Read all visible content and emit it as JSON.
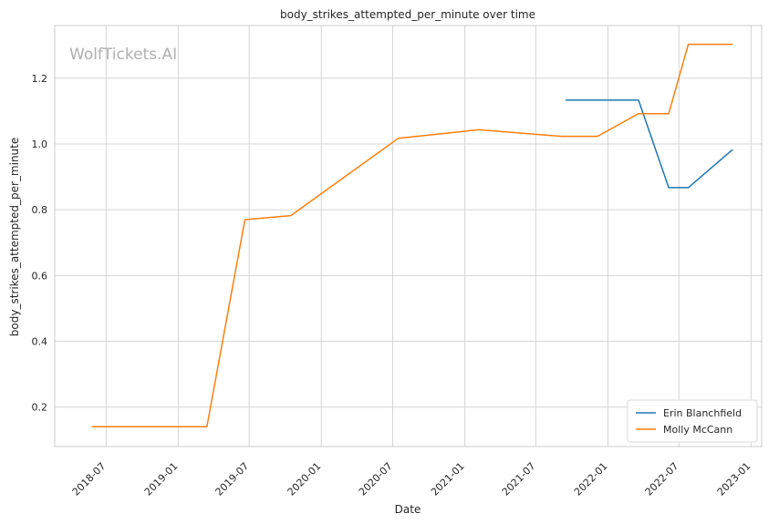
{
  "chart_data": {
    "type": "line",
    "title": "body_strikes_attempted_per_minute over time",
    "xlabel": "Date",
    "ylabel": "body_strikes_attempted_per_minute",
    "watermark": "WolfTickets.AI",
    "xlim": [
      "2018-02-20",
      "2023-01-28"
    ],
    "ylim": [
      0.08,
      1.36
    ],
    "x_ticks": [
      "2018-07",
      "2019-01",
      "2019-07",
      "2020-01",
      "2020-07",
      "2021-01",
      "2021-07",
      "2022-01",
      "2022-07",
      "2023-01"
    ],
    "y_ticks": [
      0.2,
      0.4,
      0.6,
      0.8,
      1.0,
      1.2
    ],
    "y_tick_labels": [
      "0.2",
      "0.4",
      "0.6",
      "0.8",
      "1.0",
      "1.2"
    ],
    "grid": true,
    "legend_position": "lower-right",
    "series": [
      {
        "name": "Erin Blanchfield",
        "color": "#1f77b4",
        "x": [
          "2021-09-15",
          "2022-03-20",
          "2022-06-05",
          "2022-07-25",
          "2022-11-15"
        ],
        "y": [
          1.133,
          1.133,
          0.867,
          0.867,
          0.983
        ]
      },
      {
        "name": "Molly McCann",
        "color": "#ff7f0e",
        "x": [
          "2018-05-25",
          "2019-03-15",
          "2019-06-20",
          "2019-10-15",
          "2020-07-15",
          "2021-02-05",
          "2021-09-05",
          "2021-12-05",
          "2022-03-20",
          "2022-06-05",
          "2022-07-25",
          "2022-11-15"
        ],
        "y": [
          0.14,
          0.14,
          0.77,
          0.782,
          1.017,
          1.043,
          1.023,
          1.023,
          1.092,
          1.092,
          1.303,
          1.303
        ]
      }
    ]
  }
}
